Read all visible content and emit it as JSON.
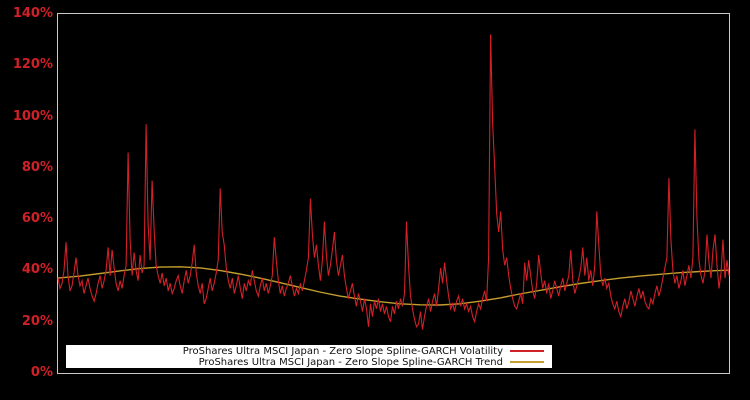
{
  "page": {
    "background_color": "#000000",
    "plot_border_color": "#c8c8c8",
    "plot_background_color": "#000000"
  },
  "y_axis": {
    "tick_labels": [
      "0%",
      "20%",
      "40%",
      "60%",
      "80%",
      "100%",
      "120%",
      "140%"
    ],
    "tick_values": [
      0,
      20,
      40,
      60,
      80,
      100,
      120,
      140
    ],
    "label_color": "#d22028"
  },
  "x_axis": {
    "tick_labels": [],
    "labels_visible": false
  },
  "legend": {
    "background_color": "#ffffff",
    "text_color": "#111111",
    "items": [
      {
        "label": "ProShares Ultra MSCI Japan - Zero Slope Spline-GARCH Volatility",
        "color": "#d22028"
      },
      {
        "label": "ProShares Ultra MSCI Japan - Zero Slope Spline-GARCH Trend",
        "color": "#c49e2e"
      }
    ]
  },
  "chart_data": {
    "type": "line",
    "title": "",
    "xlabel": "",
    "ylabel": "",
    "y_unit": "%",
    "ylim": [
      0,
      140
    ],
    "grid": false,
    "legend_position": "lower center",
    "series": [
      {
        "name": "ProShares Ultra MSCI Japan - Zero Slope Spline-GARCH Volatility",
        "color": "#d22028",
        "line_width": 1.1,
        "x_spacing": "even",
        "values": [
          37,
          33,
          35,
          40,
          51,
          38,
          32,
          34,
          39,
          45,
          38,
          34,
          36,
          31,
          34,
          37,
          33,
          30,
          28,
          31,
          35,
          38,
          33,
          36,
          40,
          49,
          38,
          48,
          41,
          35,
          32,
          36,
          33,
          38,
          42,
          86,
          52,
          38,
          47,
          40,
          36,
          46,
          39,
          42,
          97,
          58,
          44,
          75,
          56,
          42,
          38,
          35,
          39,
          34,
          37,
          32,
          35,
          31,
          33,
          36,
          38,
          34,
          31,
          36,
          40,
          35,
          38,
          43,
          50,
          39,
          34,
          31,
          35,
          27,
          29,
          33,
          37,
          32,
          35,
          39,
          44,
          72,
          55,
          50,
          41,
          36,
          33,
          37,
          31,
          34,
          38,
          33,
          29,
          35,
          32,
          36,
          34,
          40,
          36,
          32,
          30,
          34,
          37,
          32,
          35,
          31,
          34,
          38,
          53,
          44,
          36,
          31,
          34,
          30,
          33,
          35,
          38,
          34,
          30,
          33,
          31,
          35,
          32,
          36,
          40,
          45,
          68,
          54,
          45,
          50,
          42,
          36,
          44,
          59,
          46,
          38,
          42,
          48,
          55,
          44,
          38,
          42,
          46,
          38,
          33,
          29,
          32,
          35,
          30,
          26,
          31,
          28,
          24,
          29,
          25,
          18,
          27,
          22,
          28,
          25,
          29,
          24,
          27,
          23,
          26,
          22,
          20,
          26,
          23,
          28,
          25,
          29,
          26,
          31,
          59,
          42,
          30,
          25,
          21,
          18,
          19,
          24,
          17,
          22,
          26,
          29,
          24,
          28,
          31,
          26,
          33,
          41,
          35,
          43,
          36,
          30,
          25,
          27,
          24,
          28,
          30,
          26,
          29,
          25,
          27,
          24,
          26,
          22,
          20,
          24,
          27,
          25,
          29,
          32,
          28,
          45,
          132,
          98,
          80,
          62,
          55,
          63,
          48,
          42,
          45,
          38,
          33,
          29,
          26,
          25,
          28,
          31,
          27,
          43,
          36,
          44,
          38,
          32,
          29,
          35,
          46,
          39,
          33,
          36,
          31,
          35,
          29,
          32,
          36,
          33,
          30,
          34,
          37,
          32,
          35,
          38,
          48,
          36,
          31,
          34,
          37,
          41,
          49,
          38,
          45,
          36,
          40,
          34,
          42,
          63,
          50,
          38,
          34,
          37,
          33,
          35,
          30,
          27,
          25,
          28,
          24,
          22,
          26,
          29,
          25,
          28,
          32,
          29,
          26,
          30,
          33,
          29,
          32,
          28,
          26,
          25,
          29,
          27,
          31,
          34,
          30,
          33,
          37,
          41,
          45,
          76,
          52,
          40,
          35,
          38,
          33,
          36,
          40,
          34,
          38,
          42,
          37,
          45,
          95,
          60,
          44,
          38,
          35,
          40,
          54,
          43,
          37,
          48,
          54,
          42,
          33,
          39,
          52,
          37,
          44,
          38
        ]
      },
      {
        "name": "ProShares Ultra MSCI Japan - Zero Slope Spline-GARCH Trend",
        "color": "#c49e2e",
        "line_width": 1.4,
        "points_xfrac_value": [
          [
            0.0,
            37.0
          ],
          [
            0.033,
            37.8
          ],
          [
            0.063,
            38.8
          ],
          [
            0.092,
            39.8
          ],
          [
            0.122,
            40.7
          ],
          [
            0.152,
            41.3
          ],
          [
            0.182,
            41.4
          ],
          [
            0.212,
            41.0
          ],
          [
            0.241,
            40.0
          ],
          [
            0.271,
            38.6
          ],
          [
            0.301,
            37.0
          ],
          [
            0.331,
            35.2
          ],
          [
            0.361,
            33.4
          ],
          [
            0.39,
            31.6
          ],
          [
            0.42,
            30.0
          ],
          [
            0.45,
            28.8
          ],
          [
            0.48,
            27.8
          ],
          [
            0.51,
            27.0
          ],
          [
            0.54,
            26.6
          ],
          [
            0.569,
            26.5
          ],
          [
            0.599,
            27.0
          ],
          [
            0.629,
            28.0
          ],
          [
            0.659,
            29.3
          ],
          [
            0.688,
            30.8
          ],
          [
            0.718,
            32.2
          ],
          [
            0.748,
            33.6
          ],
          [
            0.778,
            34.9
          ],
          [
            0.808,
            36.0
          ],
          [
            0.838,
            37.0
          ],
          [
            0.867,
            37.8
          ],
          [
            0.897,
            38.5
          ],
          [
            0.927,
            39.1
          ],
          [
            0.957,
            39.6
          ],
          [
            0.979,
            39.9
          ],
          [
            1.0,
            40.1
          ]
        ]
      }
    ]
  }
}
